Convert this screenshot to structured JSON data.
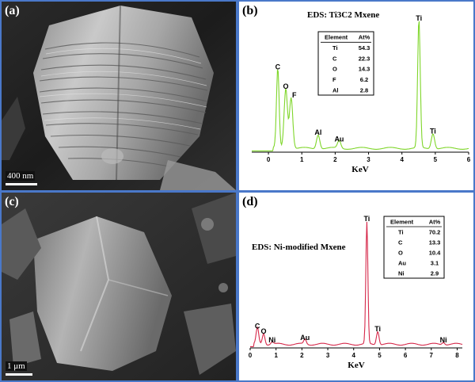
{
  "panels": {
    "a": {
      "label": "(a)",
      "scale": "400 nm"
    },
    "b": {
      "label": "(b)"
    },
    "c": {
      "label": "(c)",
      "scale": "1 μm"
    },
    "d": {
      "label": "(d)"
    }
  },
  "chart_data": [
    {
      "type": "line",
      "title": "EDS: Ti3C2 Mxene",
      "xlabel": "KeV",
      "ylabel": "",
      "xlim": [
        -0.5,
        6
      ],
      "xticks": [
        0,
        1,
        2,
        3,
        4,
        5,
        6
      ],
      "color": "#7fd62a",
      "peak_labels": [
        {
          "text": "C",
          "x": 0.28,
          "y": 0.62
        },
        {
          "text": "O",
          "x": 0.52,
          "y": 0.47
        },
        {
          "text": "F",
          "x": 0.68,
          "y": 0.4
        },
        {
          "text": "Al",
          "x": 1.49,
          "y": 0.11
        },
        {
          "text": "Au",
          "x": 2.12,
          "y": 0.06
        },
        {
          "text": "Ti",
          "x": 4.51,
          "y": 1.0
        },
        {
          "text": "Ti",
          "x": 4.93,
          "y": 0.12
        }
      ],
      "table": {
        "headers": [
          "Element",
          "At%"
        ],
        "rows": [
          [
            "Ti",
            "54.3"
          ],
          [
            "C",
            "22.3"
          ],
          [
            "O",
            "14.3"
          ],
          [
            "F",
            "6.2"
          ],
          [
            "Al",
            "2.8"
          ]
        ]
      }
    },
    {
      "type": "line",
      "title": "EDS: Ni-modified Mxene",
      "xlabel": "KeV",
      "ylabel": "",
      "xlim": [
        0,
        8.2
      ],
      "xticks": [
        0,
        1,
        2,
        3,
        4,
        5,
        6,
        7,
        8
      ],
      "color": "#d6284a",
      "peak_labels": [
        {
          "text": "C",
          "x": 0.28,
          "y": 0.13
        },
        {
          "text": "O",
          "x": 0.52,
          "y": 0.09
        },
        {
          "text": "Ni",
          "x": 0.85,
          "y": 0.02
        },
        {
          "text": "Au",
          "x": 2.12,
          "y": 0.04
        },
        {
          "text": "Ti",
          "x": 4.51,
          "y": 1.0
        },
        {
          "text": "Ti",
          "x": 4.93,
          "y": 0.11
        },
        {
          "text": "Ni",
          "x": 7.47,
          "y": 0.02
        }
      ],
      "table": {
        "headers": [
          "Element",
          "At%"
        ],
        "rows": [
          [
            "Ti",
            "70.2"
          ],
          [
            "C",
            "13.3"
          ],
          [
            "O",
            "10.4"
          ],
          [
            "Au",
            "3.1"
          ],
          [
            "Ni",
            "2.9"
          ]
        ]
      }
    }
  ]
}
